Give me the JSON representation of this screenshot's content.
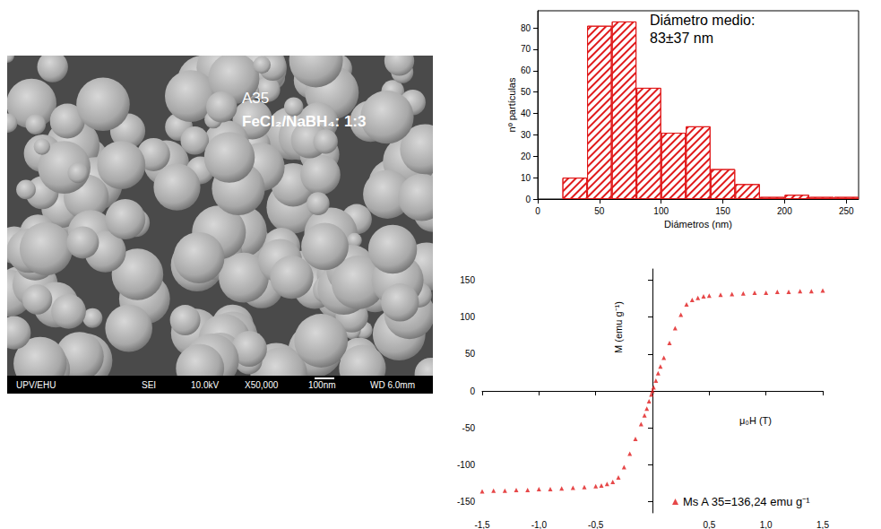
{
  "chart_data": [
    {
      "type": "histogram",
      "x_label": "Diámetros (nm)",
      "y_label": "nº partículas",
      "annotation": [
        "Diámetro medio:",
        "83±37 nm"
      ],
      "bins": [
        20,
        40,
        60,
        80,
        100,
        120,
        140,
        160,
        180,
        200,
        220,
        240,
        260
      ],
      "counts": [
        10,
        81,
        83,
        52,
        31,
        34,
        14,
        7,
        1,
        2,
        1,
        1
      ],
      "color": "#e0191a",
      "xlim": [
        0,
        260
      ],
      "xticks": [
        0,
        50,
        100,
        150,
        200,
        250
      ],
      "ylim": [
        0,
        88
      ],
      "yticks": [
        0,
        10,
        20,
        30,
        40,
        50,
        60,
        70,
        80
      ],
      "grid": false
    },
    {
      "type": "scatter",
      "x_label": "μ₀H (T)",
      "y_label": "M (emu g⁻¹)",
      "series": [
        {
          "name": "Ms A 35=136,24 emu g⁻¹",
          "color": "#e0191a",
          "marker": "triangle",
          "x": [
            -1.5,
            -1.4,
            -1.3,
            -1.2,
            -1.1,
            -1.0,
            -0.9,
            -0.8,
            -0.7,
            -0.6,
            -0.5,
            -0.45,
            -0.4,
            -0.35,
            -0.3,
            -0.25,
            -0.2,
            -0.15,
            -0.1,
            -0.07,
            -0.05,
            -0.03,
            -0.01,
            0,
            0.01,
            0.03,
            0.05,
            0.07,
            0.1,
            0.15,
            0.2,
            0.25,
            0.3,
            0.35,
            0.4,
            0.45,
            0.5,
            0.6,
            0.7,
            0.8,
            0.9,
            1.0,
            1.1,
            1.2,
            1.3,
            1.4,
            1.5
          ],
          "values": [
            -136,
            -135,
            -135,
            -134,
            -134,
            -133,
            -133,
            -132,
            -131,
            -130,
            -129,
            -128,
            -126,
            -123,
            -117,
            -103,
            -85,
            -65,
            -45,
            -33,
            -24,
            -14,
            -5,
            0,
            5,
            14,
            24,
            33,
            45,
            65,
            85,
            103,
            117,
            123,
            126,
            128,
            129,
            130,
            131,
            132,
            133,
            133,
            134,
            134,
            135,
            135,
            136
          ]
        }
      ],
      "xlim": [
        -1.5,
        1.5
      ],
      "xticks": [
        {
          "value": -1.5,
          "label": "-1,5"
        },
        {
          "value": -1.0,
          "label": "-1,0"
        },
        {
          "value": -0.5,
          "label": "-0,5"
        },
        {
          "value": 0.5,
          "label": "0,5"
        },
        {
          "value": 1.0,
          "label": "1,0"
        },
        {
          "value": 1.5,
          "label": "1,5"
        }
      ],
      "ylim": [
        -165,
        165
      ],
      "yticks": [
        -150,
        -100,
        -50,
        0,
        50,
        100,
        150
      ],
      "legend": "lower right",
      "grid": false
    }
  ],
  "sem_image": {
    "sample": "A35",
    "ratio": "FeCl₂/NaBH₄: 1:3",
    "footer": [
      "UPV/EHU",
      "SEI",
      "10.0kV",
      "X50,000",
      "100nm",
      "WD 6.0mm"
    ]
  }
}
